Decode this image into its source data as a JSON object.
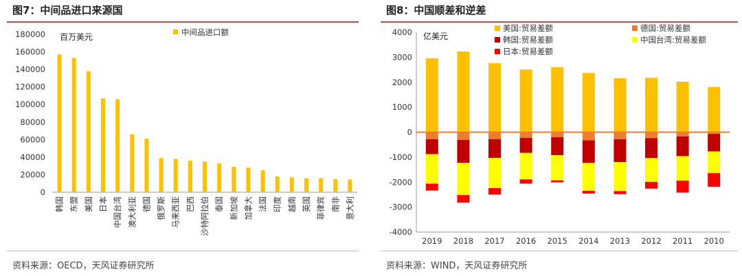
{
  "left": {
    "title": "图7：中间品进口来源国",
    "source": "资料来源：OECD，天风证券研究所",
    "chart_data": {
      "type": "bar",
      "unit_label": "百万美元",
      "categories": [
        "韩国",
        "东盟",
        "美国",
        "日本",
        "中国台湾",
        "澳大利亚",
        "德国",
        "俄罗斯",
        "马来西亚",
        "巴西",
        "沙特阿拉伯",
        "泰国",
        "新加坡",
        "加拿大",
        "法国",
        "印度",
        "越南",
        "英国",
        "菲律宾",
        "南非",
        "意大利"
      ],
      "series": [
        {
          "name": "中间品进口额",
          "color": "#FFC000",
          "values": [
            157000,
            153000,
            138000,
            107000,
            106000,
            66000,
            61000,
            39000,
            38000,
            36000,
            35000,
            33000,
            29000,
            28000,
            25000,
            18000,
            17000,
            16000,
            16000,
            15000,
            14500
          ]
        }
      ],
      "ylim": [
        0,
        180000
      ],
      "yticks": [
        0,
        20000,
        40000,
        60000,
        80000,
        100000,
        120000,
        140000,
        160000,
        180000
      ],
      "legend": "top-center",
      "grid": false
    }
  },
  "right": {
    "title": "图8：中国顺差和逆差",
    "source": "资料来源：WIND，天风证券研究所",
    "chart_data": {
      "type": "bar",
      "stacked": true,
      "unit_label": "亿美元",
      "categories": [
        "2019",
        "2018",
        "2017",
        "2016",
        "2015",
        "2014",
        "2013",
        "2012",
        "2011",
        "2010"
      ],
      "series": [
        {
          "name": "美国:贸易差额",
          "color": "#FFC000",
          "values": [
            2960,
            3230,
            2760,
            2510,
            2600,
            2370,
            2160,
            2180,
            2020,
            1810
          ]
        },
        {
          "name": "德国:贸易差额",
          "color": "#ED7D31",
          "values": [
            -280,
            -310,
            -280,
            -230,
            -200,
            -330,
            -280,
            -240,
            -170,
            -70
          ]
        },
        {
          "name": "韩国:贸易差额",
          "color": "#C00000",
          "values": [
            -600,
            -920,
            -750,
            -600,
            -720,
            -900,
            -920,
            -800,
            -790,
            -700
          ]
        },
        {
          "name": "中国台湾:贸易差额",
          "color": "#FFFF00",
          "values": [
            -1180,
            -1290,
            -1210,
            -1060,
            -1010,
            -1120,
            -1160,
            -950,
            -980,
            -870
          ]
        },
        {
          "name": "日本:贸易差额",
          "color": "#FF0000",
          "values": [
            -280,
            -300,
            -260,
            -170,
            -80,
            -110,
            -120,
            -270,
            -480,
            -550
          ]
        }
      ],
      "ylim": [
        -4000,
        4000
      ],
      "yticks": [
        -4000,
        -3000,
        -2000,
        -1000,
        0,
        1000,
        2000,
        3000,
        4000
      ],
      "zero_line_color": "#ED7D31",
      "legend": "top",
      "grid": false
    }
  }
}
